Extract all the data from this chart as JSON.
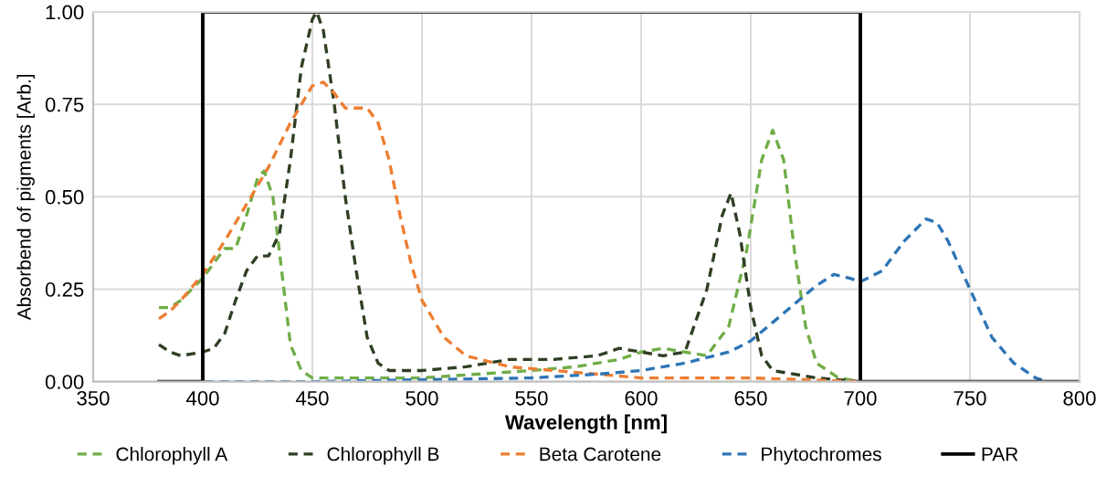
{
  "chart_data": {
    "type": "line",
    "xlabel": "Wavelength [nm]",
    "ylabel": "Absorbend of pigments [Arb.]",
    "xlim": [
      350,
      800
    ],
    "xticks": [
      350,
      400,
      450,
      500,
      550,
      600,
      650,
      700,
      750,
      800
    ],
    "ylim": [
      0,
      1
    ],
    "yticks": [
      {
        "value": 0,
        "label": "0.00"
      },
      {
        "value": 0.25,
        "label": "0.25"
      },
      {
        "value": 0.5,
        "label": "0.50"
      },
      {
        "value": 0.75,
        "label": "0.75"
      },
      {
        "value": 1,
        "label": "1.00"
      }
    ],
    "grid": true,
    "legend": "bottom",
    "marker": "none",
    "series": [
      {
        "name": "Chlorophyll A",
        "color": "#70ad47",
        "line_style": "dashed",
        "x": [
          380,
          385,
          390,
          400,
          410,
          415,
          420,
          425,
          428,
          432,
          436,
          440,
          445,
          450,
          500,
          550,
          570,
          590,
          600,
          610,
          620,
          630,
          640,
          648,
          655,
          660,
          665,
          670,
          675,
          680,
          690,
          700
        ],
        "values": [
          0.2,
          0.2,
          0.22,
          0.28,
          0.36,
          0.36,
          0.45,
          0.55,
          0.57,
          0.5,
          0.3,
          0.1,
          0.03,
          0.01,
          0.01,
          0.03,
          0.04,
          0.06,
          0.08,
          0.09,
          0.08,
          0.07,
          0.15,
          0.35,
          0.6,
          0.68,
          0.6,
          0.35,
          0.15,
          0.05,
          0.01,
          0.0
        ]
      },
      {
        "name": "Chlorophyll B",
        "color": "#2f3f24",
        "line_style": "dashed",
        "x": [
          380,
          385,
          390,
          400,
          405,
          410,
          415,
          420,
          425,
          430,
          435,
          440,
          445,
          450,
          452,
          455,
          460,
          465,
          470,
          475,
          480,
          485,
          500,
          520,
          540,
          560,
          580,
          590,
          600,
          610,
          620,
          630,
          637,
          641,
          645,
          650,
          655,
          660,
          680,
          700
        ],
        "values": [
          0.1,
          0.08,
          0.07,
          0.08,
          0.09,
          0.13,
          0.22,
          0.3,
          0.34,
          0.34,
          0.4,
          0.6,
          0.85,
          0.98,
          1.0,
          0.95,
          0.75,
          0.5,
          0.3,
          0.12,
          0.05,
          0.03,
          0.03,
          0.04,
          0.06,
          0.06,
          0.07,
          0.09,
          0.08,
          0.07,
          0.08,
          0.25,
          0.45,
          0.51,
          0.4,
          0.2,
          0.07,
          0.03,
          0.01,
          0.0
        ]
      },
      {
        "name": "Beta Carotene",
        "color": "#ed7d31",
        "line_style": "dashed",
        "x": [
          380,
          385,
          390,
          400,
          410,
          420,
          430,
          440,
          450,
          455,
          460,
          465,
          470,
          475,
          480,
          485,
          490,
          495,
          500,
          510,
          520,
          540,
          560,
          580,
          600,
          650,
          700
        ],
        "values": [
          0.17,
          0.19,
          0.22,
          0.29,
          0.38,
          0.48,
          0.58,
          0.7,
          0.8,
          0.81,
          0.78,
          0.74,
          0.74,
          0.74,
          0.7,
          0.6,
          0.45,
          0.32,
          0.22,
          0.12,
          0.07,
          0.04,
          0.03,
          0.02,
          0.01,
          0.01,
          0.0
        ]
      },
      {
        "name": "Phytochromes",
        "color": "#2e75b6",
        "line_style": "dashed",
        "x": [
          380,
          400,
          450,
          500,
          550,
          580,
          600,
          620,
          640,
          650,
          660,
          670,
          680,
          688,
          695,
          700,
          710,
          720,
          730,
          735,
          740,
          750,
          760,
          770,
          780,
          785
        ],
        "values": [
          0,
          0,
          0,
          0.005,
          0.01,
          0.02,
          0.03,
          0.05,
          0.08,
          0.11,
          0.16,
          0.21,
          0.26,
          0.29,
          0.28,
          0.27,
          0.3,
          0.38,
          0.44,
          0.43,
          0.38,
          0.25,
          0.12,
          0.05,
          0.01,
          0
        ]
      },
      {
        "name": "PAR",
        "color": "#000000",
        "line_style": "solid",
        "x": [
          380,
          400,
          400,
          700,
          700,
          800
        ],
        "values": [
          0,
          0,
          1,
          1,
          0,
          0
        ]
      }
    ]
  }
}
